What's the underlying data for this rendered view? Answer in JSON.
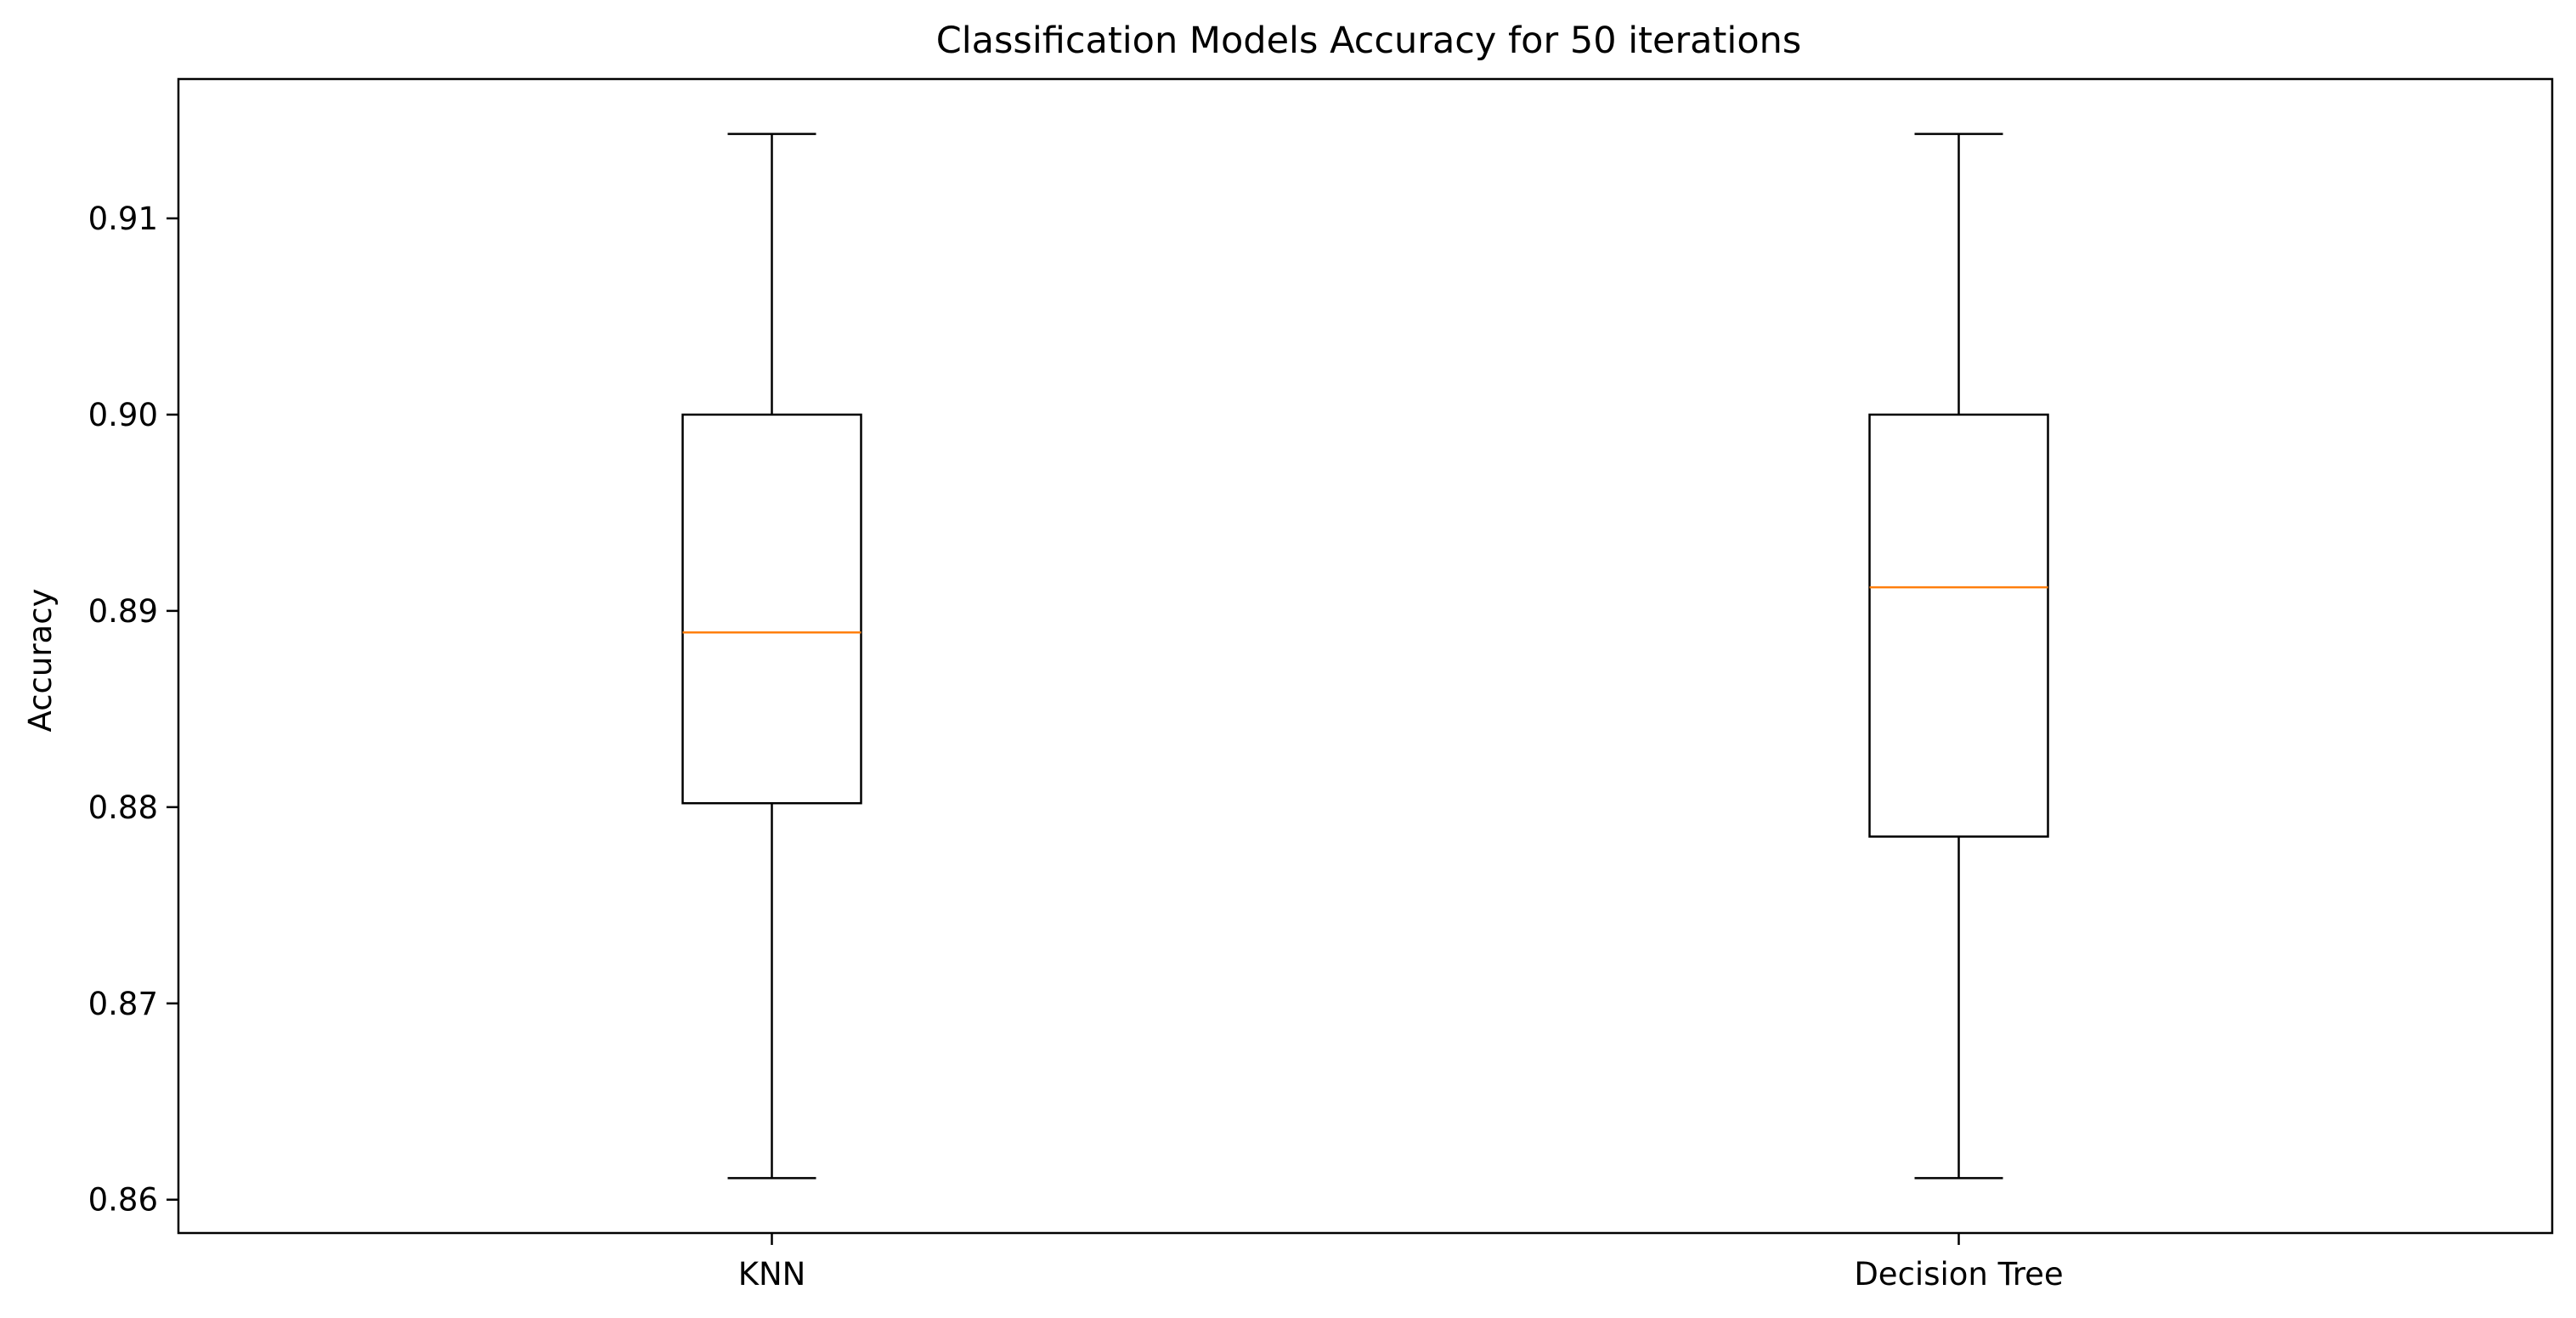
{
  "chart_data": {
    "type": "box",
    "title": "Classification Models Accuracy for 50 iterations",
    "xlabel": "",
    "ylabel": "Accuracy",
    "categories": [
      "KNN",
      "Decision Tree"
    ],
    "boxes": [
      {
        "label": "KNN",
        "whisker_low": 0.8611,
        "q1": 0.8802,
        "median": 0.8889,
        "q3": 0.9,
        "whisker_high": 0.9143
      },
      {
        "label": "Decision Tree",
        "whisker_low": 0.8611,
        "q1": 0.8785,
        "median": 0.8912,
        "q3": 0.9,
        "whisker_high": 0.9143
      }
    ],
    "ylim": [
      0.8583,
      0.9171
    ],
    "yticks": [
      0.86,
      0.87,
      0.88,
      0.89,
      0.9,
      0.91
    ],
    "ytick_labels": [
      "0.86",
      "0.87",
      "0.88",
      "0.89",
      "0.90",
      "0.91"
    ],
    "grid": false,
    "colors": {
      "box": "#000000",
      "median": "#ff7f0e"
    }
  }
}
